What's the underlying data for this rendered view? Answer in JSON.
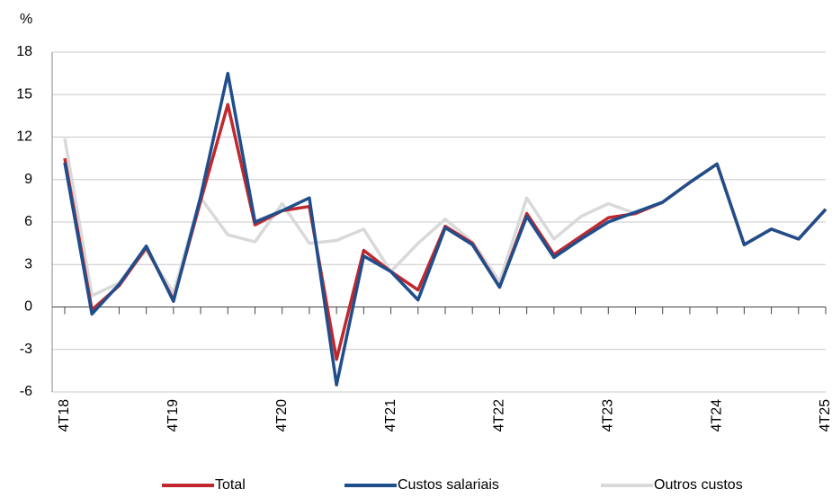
{
  "chart_data": {
    "type": "line",
    "unit": "%",
    "categories": [
      "4T18",
      null,
      null,
      null,
      "4T19",
      null,
      null,
      null,
      "4T20",
      null,
      null,
      null,
      "4T21",
      null,
      null,
      null,
      "4T22",
      null,
      null,
      null,
      "4T23",
      null,
      null,
      null,
      "4T24",
      null,
      null,
      null,
      "4T25"
    ],
    "series": [
      {
        "name": "Total",
        "color": "#c0282d",
        "values": [
          10.5,
          -0.2,
          1.5,
          4.2,
          0.5,
          7.5,
          14.3,
          5.8,
          6.8,
          7.1,
          -3.7,
          4.0,
          2.5,
          1.2,
          5.7,
          4.5,
          1.4,
          6.6,
          3.7,
          5.0,
          6.3,
          6.6,
          7.4,
          8.8,
          10.1,
          4.4,
          5.5,
          4.8,
          6.9
        ]
      },
      {
        "name": "Custos salariais",
        "color": "#1f4e8c",
        "values": [
          10.2,
          -0.5,
          1.6,
          4.3,
          0.4,
          7.8,
          16.5,
          6.0,
          6.8,
          7.7,
          -5.5,
          3.6,
          2.5,
          0.5,
          5.6,
          4.4,
          1.4,
          6.4,
          3.5,
          4.8,
          6.0,
          6.7,
          7.4,
          8.8,
          10.1,
          4.4,
          5.5,
          4.8,
          6.9
        ]
      },
      {
        "name": "Outros custos",
        "color": "#d9d9d9",
        "values": [
          11.9,
          0.8,
          1.7,
          4.0,
          1.0,
          7.7,
          5.1,
          4.6,
          7.3,
          4.5,
          4.7,
          5.5,
          2.5,
          4.5,
          6.2,
          4.6,
          1.8,
          7.7,
          4.8,
          6.4,
          7.3,
          6.6,
          7.4,
          8.8,
          10.1,
          4.4,
          5.5,
          4.8,
          6.9
        ]
      }
    ],
    "ylim": [
      -6,
      18
    ],
    "yticks": [
      -6,
      -3,
      0,
      3,
      6,
      9,
      12,
      15,
      18
    ],
    "grid": true,
    "legend": "bottom"
  }
}
